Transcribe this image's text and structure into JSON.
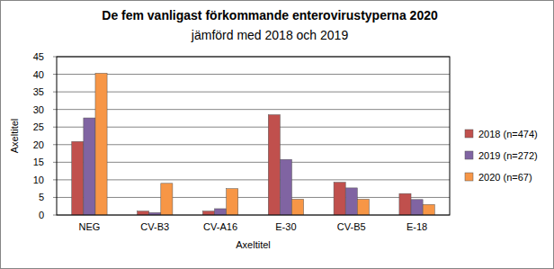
{
  "chart_data": {
    "type": "bar",
    "title": "De fem vanligast förkommande enterovirustyperna 2020",
    "subtitle": "jämförd med 2018 och 2019",
    "x_label": "Axeltitel",
    "y_label": "Axeltitel",
    "categories": [
      "NEG",
      "CV-B3",
      "CV-A16",
      "E-30",
      "CV-B5",
      "E-18"
    ],
    "series": [
      {
        "name": "2018 (n=474)",
        "color": "#c0504d",
        "values": [
          20.9,
          1.1,
          1.1,
          28.5,
          9.3,
          6.1
        ]
      },
      {
        "name": "2019 (n=272)",
        "color": "#8064a2",
        "values": [
          27.6,
          0.7,
          1.8,
          15.8,
          7.7,
          4.4
        ]
      },
      {
        "name": "2020 (n=67)",
        "color": "#f79646",
        "values": [
          40.3,
          9.0,
          7.5,
          4.5,
          4.5,
          3.0
        ]
      }
    ],
    "ylim": [
      0,
      45
    ],
    "yticks": [
      0,
      5,
      10,
      15,
      20,
      25,
      30,
      35,
      40,
      45
    ],
    "grid": true,
    "legend": "right"
  }
}
